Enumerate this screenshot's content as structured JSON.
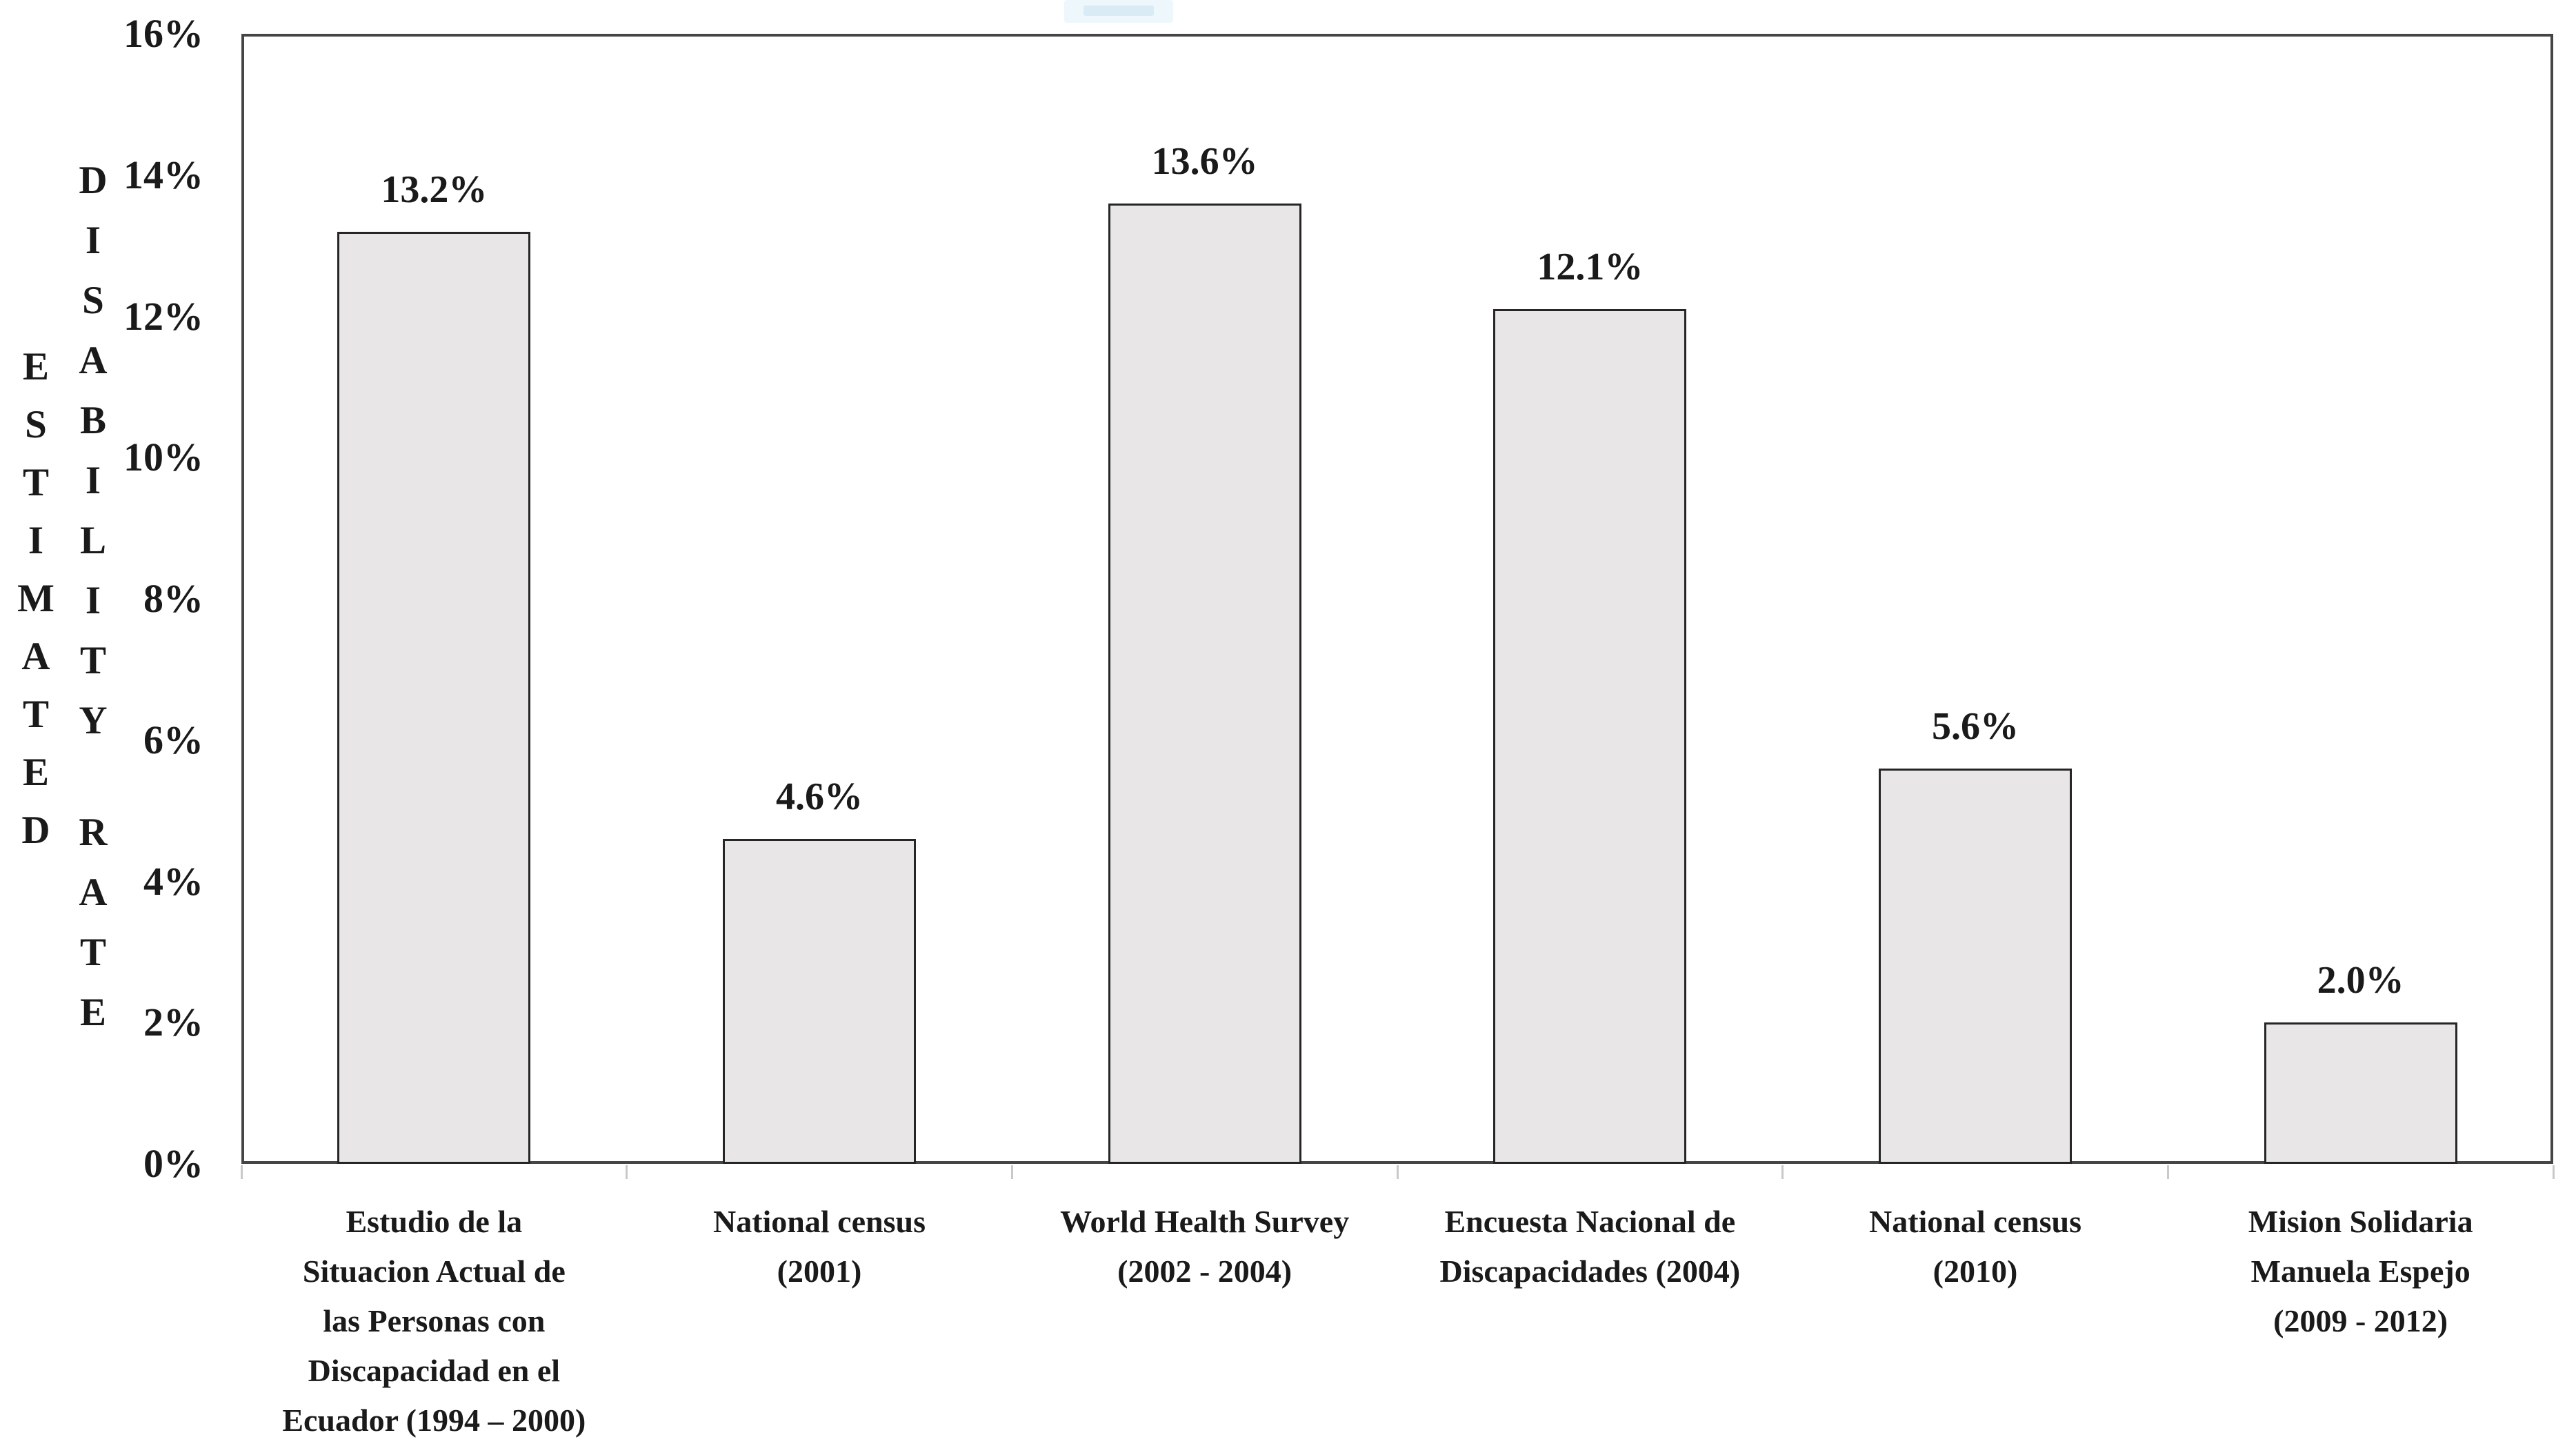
{
  "chart_data": {
    "type": "bar",
    "title": "",
    "ylabel": "ESTIMATED DISABILITY RATE",
    "ylabel_columns": [
      "ESTIMATED",
      "DISABILITY RATE"
    ],
    "xlabel": "",
    "ylim": [
      0,
      16
    ],
    "grid": false,
    "legend": null,
    "categories": [
      [
        "Estudio de la",
        "Situacion Actual de",
        "las Personas con",
        "Discapacidad en el",
        "Ecuador (1994 – 2000)"
      ],
      [
        "National census",
        "(2001)"
      ],
      [
        "World Health Survey",
        "(2002 - 2004)"
      ],
      [
        "Encuesta Nacional de",
        "Discapacidades (2004)"
      ],
      [
        "National census",
        "(2010)"
      ],
      [
        "Mision Solidaria",
        "Manuela Espejo",
        "(2009 - 2012)"
      ]
    ],
    "values": [
      13.2,
      4.6,
      13.6,
      12.1,
      5.6,
      2.0
    ],
    "data_labels": [
      "13.2%",
      "4.6%",
      "13.6%",
      "12.1%",
      "5.6%",
      "2.0%"
    ],
    "y_ticks": [
      {
        "value": 0,
        "label": "0%"
      },
      {
        "value": 2,
        "label": "2%"
      },
      {
        "value": 4,
        "label": "4%"
      },
      {
        "value": 6,
        "label": "6%"
      },
      {
        "value": 8,
        "label": "8%"
      },
      {
        "value": 10,
        "label": "10%"
      },
      {
        "value": 12,
        "label": "12%"
      },
      {
        "value": 14,
        "label": "14%"
      },
      {
        "value": 16,
        "label": "16%"
      }
    ]
  },
  "colors": {
    "bar_fill": "#e8e6e6",
    "bar_border": "#262626",
    "plot_border": "#454545",
    "text": "#1a1a1a",
    "boundary_tick": "#c9c9c9",
    "artifact_blue_light": "#eef7fb",
    "artifact_blue": "#d9ebf5"
  }
}
